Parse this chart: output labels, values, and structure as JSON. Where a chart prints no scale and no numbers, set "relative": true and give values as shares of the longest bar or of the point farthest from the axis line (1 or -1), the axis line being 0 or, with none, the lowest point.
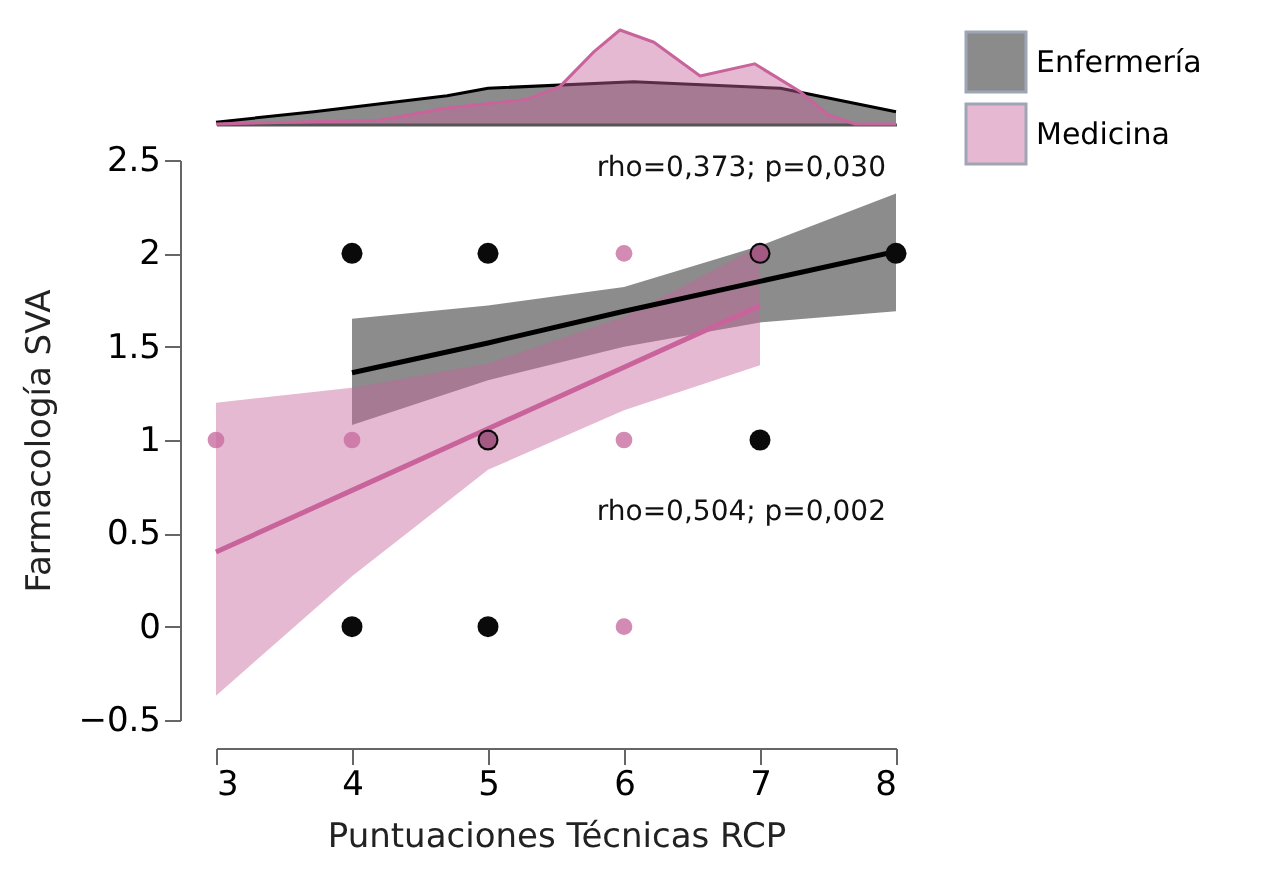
{
  "chart_data": [
    {
      "type": "area",
      "relative": true,
      "xlim": [
        3,
        8
      ],
      "tick_labels": false,
      "grid": false,
      "series": [
        {
          "color": "#000000",
          "x": [
            3,
            3.72,
            4.7,
            5,
            6.07,
            7.15,
            8
          ],
          "values": [
            0.02,
            0.13,
            0.3,
            0.38,
            0.45,
            0.38,
            0.13
          ]
        },
        {
          "color": "#c8649b",
          "x": [
            3,
            4.2,
            4.7,
            5.28,
            5.53,
            5.78,
            5.97,
            6.22,
            6.56,
            6.96,
            7.3,
            7.5,
            7.7,
            8
          ],
          "values": [
            0,
            0.04,
            0.17,
            0.26,
            0.4,
            0.77,
            1,
            0.87,
            0.51,
            0.64,
            0.34,
            0.1,
            0,
            0
          ]
        }
      ]
    },
    {
      "type": "scatter",
      "xlabel": "Puntuaciones Técnicas RCP",
      "ylabel": "Farmacología  SVA",
      "xlim": [
        3,
        8
      ],
      "xticks": [
        3,
        4,
        5,
        6,
        7,
        8
      ],
      "ylim": [
        -0.5,
        2.5
      ],
      "yticks": [
        -0.5,
        0,
        0.5,
        1,
        1.5,
        2,
        2.5
      ],
      "grid": false,
      "legend": "top right",
      "annotations": [
        "rho=0,373; p=0,030",
        "rho=0,504; p=0,002"
      ],
      "series": [
        {
          "name": "Enfermería",
          "type": "line",
          "color": "#000000",
          "x": [
            4,
            5,
            6,
            7,
            8
          ],
          "values": [
            1.36,
            1.52,
            1.69,
            1.85,
            2.01
          ],
          "lower": [
            1.08,
            1.32,
            1.5,
            1.63,
            1.69
          ],
          "upper": [
            1.65,
            1.72,
            1.82,
            2.04,
            2.32
          ]
        },
        {
          "name": "Medicina",
          "type": "line",
          "color": "#c8649b",
          "x": [
            3,
            4,
            5,
            6,
            7
          ],
          "values": [
            0.4,
            0.73,
            1.06,
            1.39,
            1.72
          ],
          "lower": [
            -0.37,
            0.27,
            0.84,
            1.16,
            1.4
          ],
          "upper": [
            1.2,
            1.28,
            1.41,
            1.66,
            2.04
          ]
        },
        {
          "type": "scatter",
          "marker": "circle",
          "color": "#0a0a0a",
          "x": [
            4,
            5,
            8,
            7,
            5,
            7,
            4,
            5
          ],
          "values": [
            2,
            2,
            2,
            2,
            1,
            1,
            0,
            0
          ]
        },
        {
          "type": "scatter",
          "marker": "circle",
          "color": "#c86ea0",
          "x": [
            6,
            7,
            3,
            4,
            5,
            6,
            6
          ],
          "values": [
            2,
            2,
            1,
            1,
            1,
            1,
            0
          ]
        }
      ]
    }
  ]
}
